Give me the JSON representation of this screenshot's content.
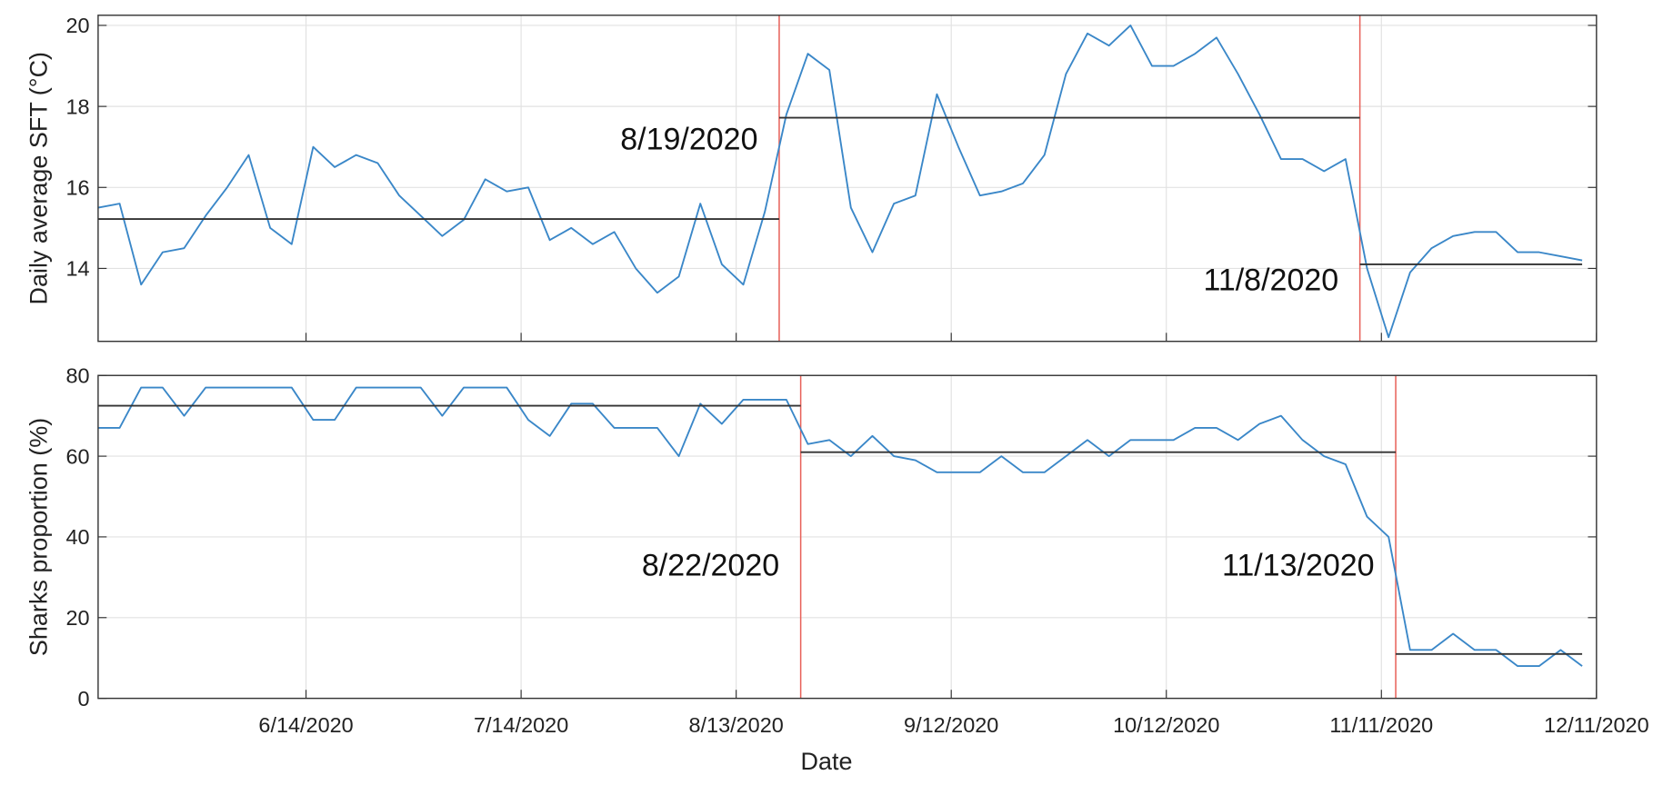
{
  "chart_data": [
    {
      "type": "line",
      "y_label": "Daily average SFT (°C)",
      "x": [
        "5/16/2020",
        "5/19/2020",
        "5/22/2020",
        "5/25/2020",
        "5/28/2020",
        "5/31/2020",
        "6/3/2020",
        "6/6/2020",
        "6/9/2020",
        "6/12/2020",
        "6/15/2020",
        "6/18/2020",
        "6/21/2020",
        "6/24/2020",
        "6/27/2020",
        "6/30/2020",
        "7/3/2020",
        "7/6/2020",
        "7/9/2020",
        "7/12/2020",
        "7/15/2020",
        "7/18/2020",
        "7/21/2020",
        "7/24/2020",
        "7/27/2020",
        "7/30/2020",
        "8/2/2020",
        "8/5/2020",
        "8/8/2020",
        "8/11/2020",
        "8/14/2020",
        "8/17/2020",
        "8/20/2020",
        "8/23/2020",
        "8/26/2020",
        "8/29/2020",
        "9/1/2020",
        "9/4/2020",
        "9/7/2020",
        "9/10/2020",
        "9/13/2020",
        "9/16/2020",
        "9/19/2020",
        "9/22/2020",
        "9/25/2020",
        "9/28/2020",
        "10/1/2020",
        "10/4/2020",
        "10/7/2020",
        "10/10/2020",
        "10/13/2020",
        "10/16/2020",
        "10/19/2020",
        "10/22/2020",
        "10/25/2020",
        "10/28/2020",
        "10/31/2020",
        "11/3/2020",
        "11/6/2020",
        "11/9/2020",
        "11/12/2020",
        "11/15/2020",
        "11/18/2020",
        "11/21/2020",
        "11/24/2020",
        "11/27/2020",
        "11/30/2020",
        "12/3/2020",
        "12/6/2020",
        "12/9/2020"
      ],
      "series": [
        {
          "color": "#3a87c8",
          "values": [
            15.5,
            15.6,
            13.6,
            14.4,
            14.5,
            15.3,
            16.0,
            16.8,
            15.0,
            14.6,
            17.0,
            16.5,
            16.8,
            16.6,
            15.8,
            15.3,
            14.8,
            15.2,
            16.2,
            15.9,
            16.0,
            14.7,
            15.0,
            14.6,
            14.9,
            14.0,
            13.4,
            13.8,
            15.6,
            14.1,
            13.6,
            15.4,
            17.8,
            19.3,
            18.9,
            15.5,
            14.4,
            15.6,
            15.8,
            18.3,
            17.0,
            15.8,
            15.9,
            16.1,
            16.8,
            18.8,
            19.8,
            19.5,
            20.0,
            19.0,
            19.0,
            19.3,
            19.7,
            18.8,
            17.8,
            16.7,
            16.7,
            16.4,
            16.7,
            14.0,
            12.3,
            13.9,
            14.5,
            14.8,
            14.9,
            14.9,
            14.4,
            14.4,
            14.3,
            14.2
          ]
        }
      ],
      "mean_lines": [
        {
          "from": "5/16/2020",
          "to": "8/19/2020",
          "value": 15.22
        },
        {
          "from": "8/19/2020",
          "to": "11/8/2020",
          "value": 17.72
        },
        {
          "from": "11/8/2020",
          "to": "12/9/2020",
          "value": 14.1
        }
      ],
      "mean_color": "#333333",
      "changepoints": [
        "8/19/2020",
        "11/8/2020"
      ],
      "changepoint_color": "#e8625a",
      "xlim": [
        "5/16/2020",
        "12/11/2020"
      ],
      "ylim": [
        12.2,
        20.25
      ],
      "yticks": [
        14,
        16,
        18,
        20
      ],
      "grid": true
    },
    {
      "type": "line",
      "y_label": "Sharks proportion (%)",
      "x_label": "Date",
      "x": [
        "5/16/2020",
        "5/19/2020",
        "5/22/2020",
        "5/25/2020",
        "5/28/2020",
        "5/31/2020",
        "6/3/2020",
        "6/6/2020",
        "6/9/2020",
        "6/12/2020",
        "6/15/2020",
        "6/18/2020",
        "6/21/2020",
        "6/24/2020",
        "6/27/2020",
        "6/30/2020",
        "7/3/2020",
        "7/6/2020",
        "7/9/2020",
        "7/12/2020",
        "7/15/2020",
        "7/18/2020",
        "7/21/2020",
        "7/24/2020",
        "7/27/2020",
        "7/30/2020",
        "8/2/2020",
        "8/5/2020",
        "8/8/2020",
        "8/11/2020",
        "8/14/2020",
        "8/17/2020",
        "8/20/2020",
        "8/23/2020",
        "8/26/2020",
        "8/29/2020",
        "9/1/2020",
        "9/4/2020",
        "9/7/2020",
        "9/10/2020",
        "9/13/2020",
        "9/16/2020",
        "9/19/2020",
        "9/22/2020",
        "9/25/2020",
        "9/28/2020",
        "10/1/2020",
        "10/4/2020",
        "10/7/2020",
        "10/10/2020",
        "10/13/2020",
        "10/16/2020",
        "10/19/2020",
        "10/22/2020",
        "10/25/2020",
        "10/28/2020",
        "10/31/2020",
        "11/3/2020",
        "11/6/2020",
        "11/9/2020",
        "11/12/2020",
        "11/15/2020",
        "11/18/2020",
        "11/21/2020",
        "11/24/2020",
        "11/27/2020",
        "11/30/2020",
        "12/3/2020",
        "12/6/2020",
        "12/9/2020"
      ],
      "series": [
        {
          "color": "#3a87c8",
          "values": [
            67,
            67,
            77,
            77,
            70,
            77,
            77,
            77,
            77,
            77,
            69,
            69,
            77,
            77,
            77,
            77,
            70,
            77,
            77,
            77,
            69,
            65,
            73,
            73,
            67,
            67,
            67,
            60,
            73,
            68,
            74,
            74,
            74,
            63,
            64,
            60,
            65,
            60,
            59,
            56,
            56,
            56,
            60,
            56,
            56,
            60,
            64,
            60,
            64,
            64,
            64,
            67,
            67,
            64,
            68,
            70,
            64,
            60,
            58,
            45,
            40,
            12,
            12,
            16,
            12,
            12,
            8,
            8,
            12,
            8
          ]
        }
      ],
      "mean_lines": [
        {
          "from": "5/16/2020",
          "to": "8/22/2020",
          "value": 72.5
        },
        {
          "from": "8/22/2020",
          "to": "11/13/2020",
          "value": 61
        },
        {
          "from": "11/13/2020",
          "to": "12/9/2020",
          "value": 11
        }
      ],
      "mean_color": "#333333",
      "changepoints": [
        "8/22/2020",
        "11/13/2020"
      ],
      "changepoint_color": "#e8625a",
      "xlim": [
        "5/16/2020",
        "12/11/2020"
      ],
      "ylim": [
        0,
        80
      ],
      "yticks": [
        0,
        20,
        40,
        60,
        80
      ],
      "xticks": [
        "6/14/2020",
        "7/14/2020",
        "8/13/2020",
        "9/12/2020",
        "10/12/2020",
        "11/11/2020",
        "12/11/2020"
      ],
      "grid": true
    }
  ]
}
